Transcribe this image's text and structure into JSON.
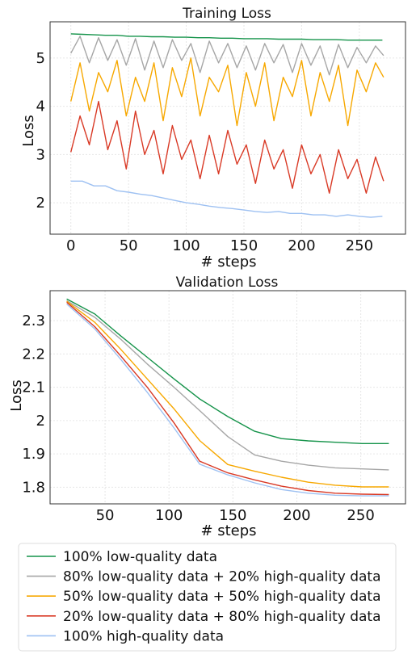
{
  "chart_data": [
    {
      "type": "line",
      "title": "Training Loss",
      "xlabel": "# steps",
      "ylabel": "Loss",
      "xlim": [
        -18,
        290
      ],
      "ylim": [
        1.35,
        5.75
      ],
      "xticks": [
        0,
        50,
        100,
        150,
        200,
        250
      ],
      "yticks": [
        2,
        3,
        4,
        5
      ],
      "grid": true,
      "series": [
        {
          "name": "100% low-quality data",
          "color": "#15934a",
          "x": [
            0,
            10,
            20,
            30,
            40,
            50,
            60,
            70,
            80,
            90,
            100,
            110,
            120,
            130,
            140,
            150,
            160,
            170,
            180,
            190,
            200,
            210,
            220,
            230,
            240,
            250,
            260,
            270
          ],
          "values": [
            5.5,
            5.49,
            5.48,
            5.47,
            5.47,
            5.45,
            5.45,
            5.44,
            5.44,
            5.43,
            5.43,
            5.42,
            5.42,
            5.41,
            5.41,
            5.4,
            5.4,
            5.4,
            5.39,
            5.39,
            5.39,
            5.38,
            5.38,
            5.38,
            5.37,
            5.37,
            5.37,
            5.37
          ]
        },
        {
          "name": "80% low-quality data + 20% high-quality data",
          "color": "#a6a6a6",
          "x": [
            0,
            8,
            16,
            24,
            32,
            40,
            48,
            56,
            64,
            72,
            80,
            88,
            96,
            104,
            112,
            120,
            128,
            136,
            144,
            152,
            160,
            168,
            176,
            184,
            192,
            200,
            208,
            216,
            224,
            232,
            240,
            248,
            256,
            264,
            271
          ],
          "values": [
            5.1,
            5.45,
            4.9,
            5.42,
            4.95,
            5.38,
            4.85,
            5.4,
            4.75,
            5.35,
            4.8,
            5.38,
            4.95,
            5.3,
            4.7,
            5.35,
            4.9,
            5.3,
            4.8,
            5.25,
            4.75,
            5.3,
            4.9,
            5.28,
            4.7,
            5.3,
            4.85,
            5.25,
            4.65,
            5.28,
            4.8,
            5.22,
            4.9,
            5.25,
            5.05
          ]
        },
        {
          "name": "50% low-quality data + 50% high-quality data",
          "color": "#f7a800",
          "x": [
            0,
            8,
            16,
            24,
            32,
            40,
            48,
            56,
            64,
            72,
            80,
            88,
            96,
            104,
            112,
            120,
            128,
            136,
            144,
            152,
            160,
            168,
            176,
            184,
            192,
            200,
            208,
            216,
            224,
            232,
            240,
            248,
            256,
            264,
            271
          ],
          "values": [
            4.1,
            4.9,
            3.9,
            4.7,
            4.3,
            4.95,
            3.8,
            4.6,
            4.1,
            4.9,
            3.7,
            4.8,
            4.2,
            5.0,
            3.8,
            4.6,
            4.3,
            4.85,
            3.6,
            4.7,
            4.0,
            4.9,
            3.7,
            4.6,
            4.2,
            4.95,
            3.8,
            4.7,
            4.1,
            4.85,
            3.6,
            4.75,
            4.3,
            4.9,
            4.6
          ]
        },
        {
          "name": "20% low-quality data + 80% high-quality data",
          "color": "#d93a26",
          "x": [
            0,
            8,
            16,
            24,
            32,
            40,
            48,
            56,
            64,
            72,
            80,
            88,
            96,
            104,
            112,
            120,
            128,
            136,
            144,
            152,
            160,
            168,
            176,
            184,
            192,
            200,
            208,
            216,
            224,
            232,
            240,
            248,
            256,
            264,
            271
          ],
          "values": [
            3.05,
            3.8,
            3.2,
            4.1,
            3.1,
            3.7,
            2.7,
            3.9,
            3.0,
            3.5,
            2.6,
            3.6,
            2.9,
            3.3,
            2.5,
            3.4,
            2.6,
            3.5,
            2.8,
            3.2,
            2.4,
            3.3,
            2.7,
            3.1,
            2.3,
            3.2,
            2.6,
            3.0,
            2.2,
            3.1,
            2.5,
            2.9,
            2.2,
            2.95,
            2.45
          ]
        },
        {
          "name": "100% high-quality data",
          "color": "#9ec1f2",
          "x": [
            0,
            10,
            20,
            30,
            40,
            50,
            60,
            70,
            80,
            90,
            100,
            110,
            120,
            130,
            140,
            150,
            160,
            170,
            180,
            190,
            200,
            210,
            220,
            230,
            240,
            250,
            260,
            270
          ],
          "values": [
            2.45,
            2.45,
            2.35,
            2.35,
            2.25,
            2.22,
            2.18,
            2.15,
            2.1,
            2.05,
            2.0,
            1.97,
            1.93,
            1.9,
            1.88,
            1.85,
            1.82,
            1.8,
            1.82,
            1.78,
            1.78,
            1.75,
            1.75,
            1.72,
            1.75,
            1.72,
            1.7,
            1.72
          ]
        }
      ]
    },
    {
      "type": "line",
      "title": "Validation Loss",
      "xlabel": "# steps",
      "ylabel": "Loss",
      "xlim": [
        7,
        285
      ],
      "ylim": [
        1.75,
        2.39
      ],
      "xticks": [
        50,
        100,
        150,
        200,
        250
      ],
      "yticks": [
        1.8,
        1.9,
        2.0,
        2.1,
        2.2,
        2.3
      ],
      "grid": true,
      "series": [
        {
          "name": "100% low-quality data",
          "color": "#15934a",
          "x": [
            20,
            42,
            62,
            83,
            104,
            124,
            146,
            167,
            188,
            209,
            230,
            251,
            272
          ],
          "values": [
            2.365,
            2.32,
            2.255,
            2.19,
            2.125,
            2.065,
            2.012,
            1.968,
            1.946,
            1.939,
            1.935,
            1.931,
            1.931
          ]
        },
        {
          "name": "80% low-quality data + 20% high-quality data",
          "color": "#a6a6a6",
          "x": [
            20,
            42,
            62,
            83,
            104,
            124,
            146,
            167,
            188,
            209,
            230,
            251,
            272
          ],
          "values": [
            2.36,
            2.31,
            2.245,
            2.17,
            2.1,
            2.03,
            1.952,
            1.897,
            1.878,
            1.866,
            1.858,
            1.855,
            1.852
          ]
        },
        {
          "name": "50% low-quality data + 50% high-quality data",
          "color": "#f7a800",
          "x": [
            20,
            42,
            62,
            83,
            104,
            124,
            146,
            167,
            188,
            209,
            230,
            251,
            272
          ],
          "values": [
            2.358,
            2.295,
            2.215,
            2.125,
            2.035,
            1.94,
            1.868,
            1.848,
            1.83,
            1.815,
            1.806,
            1.801,
            1.801
          ]
        },
        {
          "name": "20% low-quality data + 80% high-quality data",
          "color": "#d93a26",
          "x": [
            20,
            42,
            62,
            83,
            104,
            124,
            146,
            167,
            188,
            209,
            230,
            251,
            272
          ],
          "values": [
            2.355,
            2.282,
            2.195,
            2.1,
            1.993,
            1.878,
            1.843,
            1.822,
            1.803,
            1.79,
            1.782,
            1.779,
            1.778
          ]
        },
        {
          "name": "100% high-quality data",
          "color": "#9ec1f2",
          "x": [
            20,
            42,
            62,
            83,
            104,
            124,
            146,
            167,
            188,
            209,
            230,
            251,
            272
          ],
          "values": [
            2.35,
            2.275,
            2.185,
            2.085,
            1.978,
            1.869,
            1.837,
            1.813,
            1.793,
            1.782,
            1.776,
            1.774,
            1.774
          ]
        }
      ]
    }
  ],
  "legend": {
    "placement": "bottom",
    "items": [
      {
        "label": "100% low-quality data",
        "color": "#15934a"
      },
      {
        "label": "80% low-quality data + 20% high-quality data",
        "color": "#a6a6a6"
      },
      {
        "label": "50% low-quality data + 50% high-quality data",
        "color": "#f7a800"
      },
      {
        "label": "20% low-quality data + 80% high-quality data",
        "color": "#d93a26"
      },
      {
        "label": "100% high-quality data",
        "color": "#9ec1f2"
      }
    ]
  }
}
